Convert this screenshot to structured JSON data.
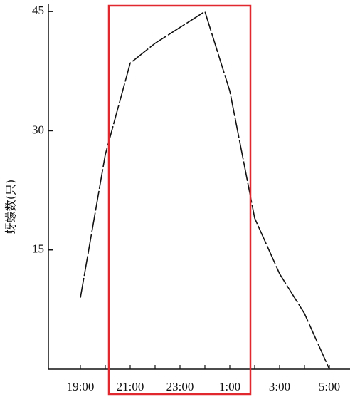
{
  "chart_data": {
    "type": "line",
    "y_label": "蚜蠓数(只)",
    "categories": [
      "19:00",
      null,
      "21:00",
      null,
      "23:00",
      null,
      "1:00",
      null,
      "3:00",
      null,
      "5:00"
    ],
    "values": [
      9,
      27,
      38.5,
      41,
      43,
      45,
      35,
      19,
      12,
      7,
      0
    ],
    "color": "#111111",
    "ylim": [
      0,
      46
    ],
    "yticks": [
      15,
      30,
      45
    ]
  }
}
